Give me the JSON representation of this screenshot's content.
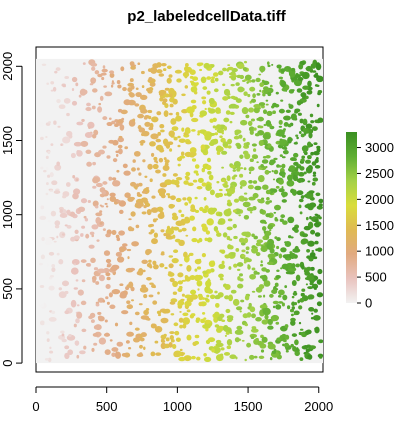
{
  "chart_data": {
    "type": "heatmap",
    "title": "p2_labeledcellData.tiff",
    "xlabel": "",
    "ylabel": "",
    "xlim": [
      0,
      2030
    ],
    "ylim": [
      -60,
      2130
    ],
    "image_extent": {
      "x": [
        0,
        2030
      ],
      "y": [
        0,
        2050
      ]
    },
    "x_ticks": [
      0,
      500,
      1000,
      1500,
      2000
    ],
    "y_ticks": [
      0,
      500,
      1000,
      1500,
      2000
    ],
    "legend": {
      "placement": "right",
      "range": [
        0,
        3300
      ],
      "ticks": [
        0,
        500,
        1000,
        1500,
        2000,
        2500,
        3000
      ],
      "colors": [
        "#f2f2f2",
        "#e9c3be",
        "#e1aa80",
        "#e0ba53",
        "#d9dd3b",
        "#a4d147",
        "#5fae33",
        "#3a8f21"
      ]
    },
    "value_trend": "cell label values increase from left (~0) to right (~3300)",
    "background_color": "#f2f2f2",
    "grid": false
  }
}
